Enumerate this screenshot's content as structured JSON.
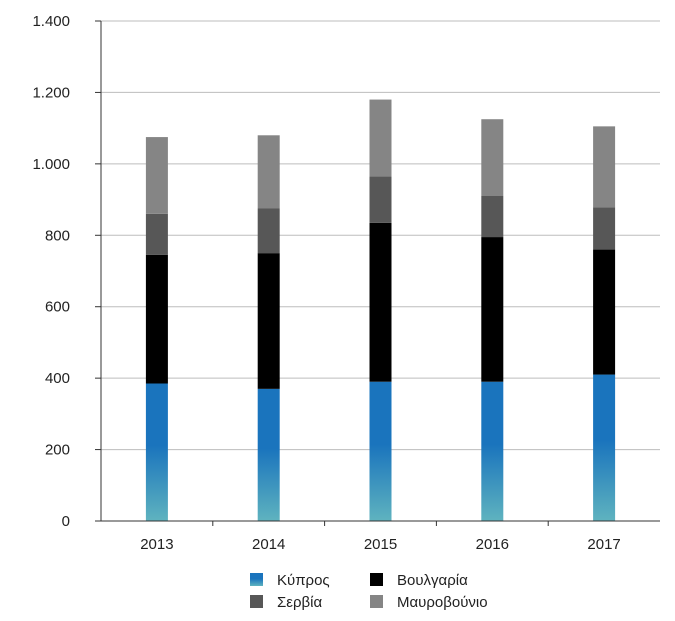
{
  "chart_data": {
    "type": "bar",
    "stacked": true,
    "categories": [
      "2013",
      "2014",
      "2015",
      "2016",
      "2017"
    ],
    "series": [
      {
        "name": "Κύπρος",
        "values": [
          385,
          370,
          390,
          390,
          410
        ],
        "color": "#1a74bd",
        "gradient_to": "#5fb3bf"
      },
      {
        "name": "Βουλγαρία",
        "values": [
          360,
          380,
          445,
          405,
          350
        ],
        "color": "#000000"
      },
      {
        "name": "Σερβία",
        "values": [
          115,
          125,
          130,
          115,
          118
        ],
        "color": "#575757"
      },
      {
        "name": "Μαυροβούνιο",
        "values": [
          215,
          205,
          215,
          215,
          227
        ],
        "color": "#858585"
      }
    ],
    "ylim": [
      0,
      1400
    ],
    "yticks": [
      0,
      200,
      400,
      600,
      800,
      1000,
      1200,
      1400
    ],
    "ytick_labels": [
      "0",
      "200",
      "400",
      "600",
      "800",
      "1.000",
      "1.200",
      "1.400"
    ],
    "grid": true,
    "legend_position": "bottom",
    "title": "",
    "xlabel": "",
    "ylabel": ""
  }
}
